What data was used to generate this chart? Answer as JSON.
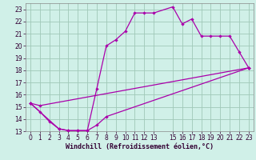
{
  "xlabel": "Windchill (Refroidissement éolien,°C)",
  "bg_color": "#d0f0e8",
  "grid_color": "#a0c8b8",
  "line_color": "#aa00aa",
  "xlim": [
    -0.5,
    23.5
  ],
  "ylim": [
    13,
    23.5
  ],
  "xticks": [
    0,
    1,
    2,
    3,
    4,
    5,
    6,
    7,
    8,
    9,
    10,
    11,
    12,
    13,
    15,
    16,
    17,
    18,
    19,
    20,
    21,
    22,
    23
  ],
  "yticks": [
    13,
    14,
    15,
    16,
    17,
    18,
    19,
    20,
    21,
    22,
    23
  ],
  "line1_x": [
    0,
    1,
    2,
    3,
    4,
    5,
    6,
    7,
    8,
    9,
    10,
    11,
    12,
    13,
    15,
    16,
    17,
    18,
    19,
    20,
    21,
    22,
    23
  ],
  "line1_y": [
    15.3,
    14.6,
    13.8,
    13.2,
    13.05,
    13.05,
    13.05,
    16.5,
    20.0,
    20.5,
    21.2,
    22.7,
    22.7,
    22.7,
    23.2,
    21.8,
    22.2,
    20.8,
    20.8,
    20.8,
    20.8,
    19.5,
    18.2
  ],
  "line2_x": [
    0,
    1,
    23
  ],
  "line2_y": [
    15.3,
    15.1,
    18.2
  ],
  "line3_x": [
    0,
    3,
    4,
    5,
    6,
    7,
    8,
    23
  ],
  "line3_y": [
    15.3,
    13.2,
    13.05,
    13.05,
    13.05,
    13.5,
    14.2,
    18.2
  ],
  "xlabel_fontsize": 6,
  "tick_fontsize": 5.5
}
